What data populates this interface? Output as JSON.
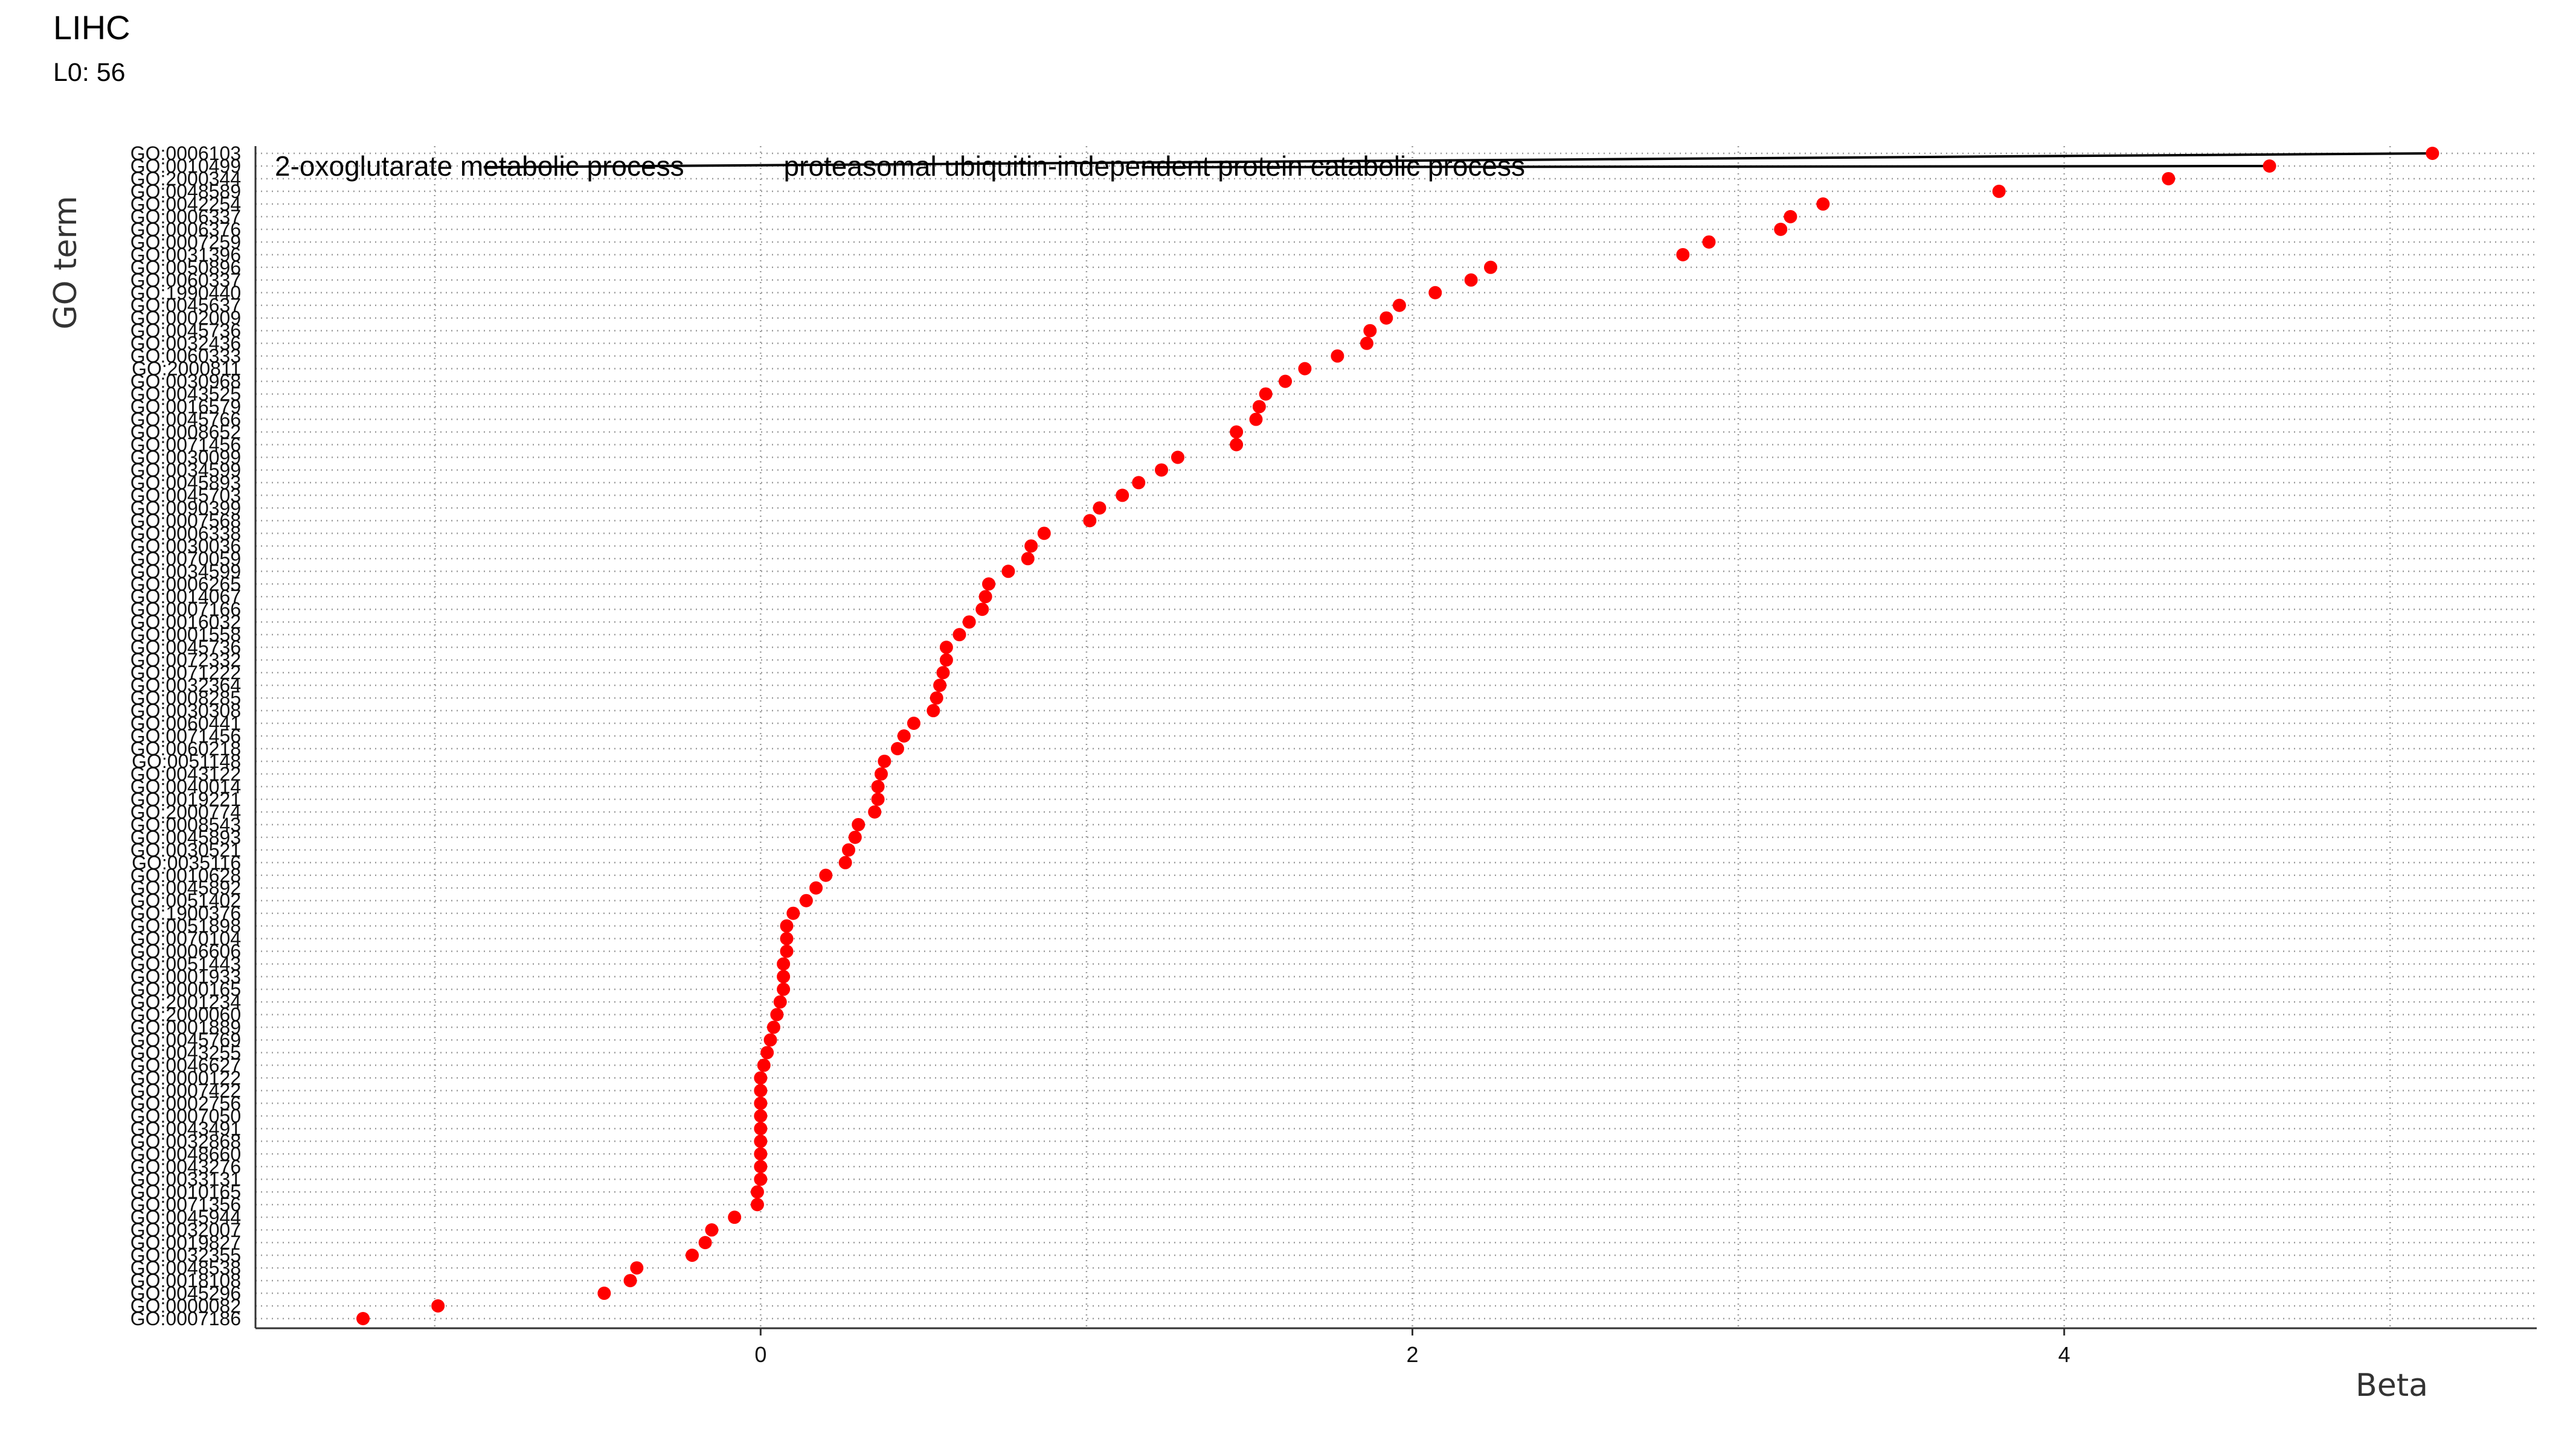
{
  "chart_data": {
    "type": "scatter",
    "title": "LIHC",
    "subtitle": "L0: 56",
    "xlabel": "Beta",
    "ylabel": "GO term",
    "xlim": [
      -1.55,
      5.45
    ],
    "xticks": [
      0,
      2,
      4
    ],
    "grid": "dotted-both",
    "point_color": "#ff0000",
    "annotations": [
      {
        "label": "2-oxoglutarate metabolic process",
        "term": "GO:0006103"
      },
      {
        "label": "proteasomal ubiquitin-independent protein catabolic process",
        "term": "GO:0010499"
      }
    ],
    "points": [
      {
        "term": "GO:0006103",
        "beta": 5.13
      },
      {
        "term": "GO:0010499",
        "beta": 4.63
      },
      {
        "term": "GO:2000344",
        "beta": 4.32
      },
      {
        "term": "GO:0048589",
        "beta": 3.8
      },
      {
        "term": "GO:0042254",
        "beta": 3.26
      },
      {
        "term": "GO:0006337",
        "beta": 3.16
      },
      {
        "term": "GO:0006376",
        "beta": 3.13
      },
      {
        "term": "GO:0007259",
        "beta": 2.91
      },
      {
        "term": "GO:0031396",
        "beta": 2.83
      },
      {
        "term": "GO:0050896",
        "beta": 2.24
      },
      {
        "term": "GO:0060337",
        "beta": 2.18
      },
      {
        "term": "GO:1990440",
        "beta": 2.07
      },
      {
        "term": "GO:0045637",
        "beta": 1.96
      },
      {
        "term": "GO:0002009",
        "beta": 1.92
      },
      {
        "term": "GO:0045736",
        "beta": 1.87
      },
      {
        "term": "GO:0032436",
        "beta": 1.86
      },
      {
        "term": "GO:0060333",
        "beta": 1.77
      },
      {
        "term": "GO:2000811",
        "beta": 1.67
      },
      {
        "term": "GO:0030968",
        "beta": 1.61
      },
      {
        "term": "GO:0043525",
        "beta": 1.55
      },
      {
        "term": "GO:0016579",
        "beta": 1.53
      },
      {
        "term": "GO:0045766",
        "beta": 1.52
      },
      {
        "term": "GO:0008652",
        "beta": 1.46
      },
      {
        "term": "GO:0071456",
        "beta": 1.46
      },
      {
        "term": "GO:0030099",
        "beta": 1.28
      },
      {
        "term": "GO:0034599",
        "beta": 1.23
      },
      {
        "term": "GO:0045893",
        "beta": 1.16
      },
      {
        "term": "GO:0045703",
        "beta": 1.11
      },
      {
        "term": "GO:0090399",
        "beta": 1.04
      },
      {
        "term": "GO:0007568",
        "beta": 1.01
      },
      {
        "term": "GO:0006338",
        "beta": 0.87
      },
      {
        "term": "GO:0030036",
        "beta": 0.83
      },
      {
        "term": "GO:0070059",
        "beta": 0.82
      },
      {
        "term": "GO:0034599",
        "beta": 0.76
      },
      {
        "term": "GO:0006265",
        "beta": 0.7
      },
      {
        "term": "GO:0014067",
        "beta": 0.69
      },
      {
        "term": "GO:0007166",
        "beta": 0.68
      },
      {
        "term": "GO:0016032",
        "beta": 0.64
      },
      {
        "term": "GO:0001558",
        "beta": 0.61
      },
      {
        "term": "GO:0045736",
        "beta": 0.57
      },
      {
        "term": "GO:0072332",
        "beta": 0.57
      },
      {
        "term": "GO:0071222",
        "beta": 0.56
      },
      {
        "term": "GO:0032364",
        "beta": 0.55
      },
      {
        "term": "GO:0008285",
        "beta": 0.54
      },
      {
        "term": "GO:0030308",
        "beta": 0.53
      },
      {
        "term": "GO:0060441",
        "beta": 0.47
      },
      {
        "term": "GO:0071456",
        "beta": 0.44
      },
      {
        "term": "GO:0060218",
        "beta": 0.42
      },
      {
        "term": "GO:0051148",
        "beta": 0.38
      },
      {
        "term": "GO:0043122",
        "beta": 0.37
      },
      {
        "term": "GO:0040014",
        "beta": 0.36
      },
      {
        "term": "GO:0019221",
        "beta": 0.36
      },
      {
        "term": "GO:2000774",
        "beta": 0.35
      },
      {
        "term": "GO:0008543",
        "beta": 0.3
      },
      {
        "term": "GO:0045893",
        "beta": 0.29
      },
      {
        "term": "GO:0030521",
        "beta": 0.27
      },
      {
        "term": "GO:0035116",
        "beta": 0.26
      },
      {
        "term": "GO:0010628",
        "beta": 0.2
      },
      {
        "term": "GO:0045892",
        "beta": 0.17
      },
      {
        "term": "GO:0051402",
        "beta": 0.14
      },
      {
        "term": "GO:1900376",
        "beta": 0.1
      },
      {
        "term": "GO:0051898",
        "beta": 0.08
      },
      {
        "term": "GO:0070104",
        "beta": 0.08
      },
      {
        "term": "GO:0006606",
        "beta": 0.08
      },
      {
        "term": "GO:0051443",
        "beta": 0.07
      },
      {
        "term": "GO:0001933",
        "beta": 0.07
      },
      {
        "term": "GO:0000165",
        "beta": 0.07
      },
      {
        "term": "GO:2001234",
        "beta": 0.06
      },
      {
        "term": "GO:2000060",
        "beta": 0.05
      },
      {
        "term": "GO:0001889",
        "beta": 0.04
      },
      {
        "term": "GO:0045769",
        "beta": 0.03
      },
      {
        "term": "GO:0043255",
        "beta": 0.02
      },
      {
        "term": "GO:0046627",
        "beta": 0.01
      },
      {
        "term": "GO:0000122",
        "beta": 0.0
      },
      {
        "term": "GO:0007422",
        "beta": 0.0
      },
      {
        "term": "GO:0002756",
        "beta": 0.0
      },
      {
        "term": "GO:0007050",
        "beta": 0.0
      },
      {
        "term": "GO:0043491",
        "beta": 0.0
      },
      {
        "term": "GO:0032868",
        "beta": 0.0
      },
      {
        "term": "GO:0048660",
        "beta": 0.0
      },
      {
        "term": "GO:0043276",
        "beta": 0.0
      },
      {
        "term": "GO:0033131",
        "beta": 0.0
      },
      {
        "term": "GO:0010165",
        "beta": -0.01
      },
      {
        "term": "GO:0071356",
        "beta": -0.01
      },
      {
        "term": "GO:0045944",
        "beta": -0.08
      },
      {
        "term": "GO:0032007",
        "beta": -0.15
      },
      {
        "term": "GO:0019827",
        "beta": -0.17
      },
      {
        "term": "GO:0032355",
        "beta": -0.21
      },
      {
        "term": "GO:0048538",
        "beta": -0.38
      },
      {
        "term": "GO:0018108",
        "beta": -0.4
      },
      {
        "term": "GO:0045296",
        "beta": -0.48
      },
      {
        "term": "GO:0000082",
        "beta": -0.99
      },
      {
        "term": "GO:0007186",
        "beta": -1.22
      }
    ]
  }
}
